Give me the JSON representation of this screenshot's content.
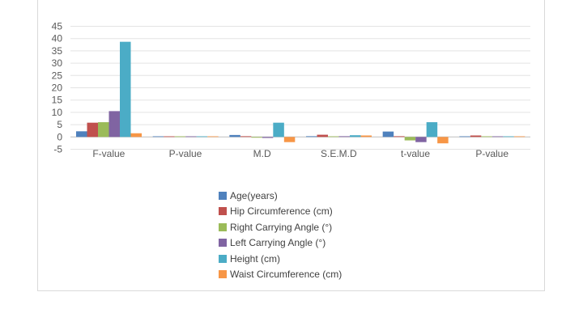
{
  "chart_data": {
    "type": "bar",
    "categories": [
      "F-value",
      "P-value",
      "M.D",
      "S.E.M.D",
      "t-value",
      "P-value"
    ],
    "series": [
      {
        "name": "Age(years)",
        "color": "#4f81bd",
        "values": [
          2.3,
          0.05,
          0.8,
          0.3,
          2.2,
          0.05
        ]
      },
      {
        "name": "Hip Circumference (cm)",
        "color": "#c0504d",
        "values": [
          5.8,
          0.05,
          0.3,
          0.9,
          0.3,
          0.6
        ]
      },
      {
        "name": "Right Carrying Angle (°)",
        "color": "#9bbb59",
        "values": [
          6.0,
          0.05,
          -0.3,
          0.2,
          -1.4,
          0.05
        ]
      },
      {
        "name": "Left Carrying Angle (°)",
        "color": "#8064a2",
        "values": [
          10.5,
          0.05,
          -0.4,
          0.3,
          -2.1,
          0.05
        ]
      },
      {
        "name": "Height (cm)",
        "color": "#4bacc6",
        "values": [
          38.7,
          0.05,
          5.8,
          0.7,
          6.0,
          0.05
        ]
      },
      {
        "name": "Waist Circumference (cm)",
        "color": "#f79646",
        "values": [
          1.5,
          0.1,
          -2.1,
          0.6,
          -2.6,
          0.05
        ]
      }
    ],
    "yticks": [
      "45",
      "40",
      "35",
      "30",
      "25",
      "20",
      "15",
      "10",
      "5",
      "0",
      "-5"
    ],
    "ylim": [
      -5,
      45
    ],
    "grid": true,
    "legend_position": "bottom"
  }
}
